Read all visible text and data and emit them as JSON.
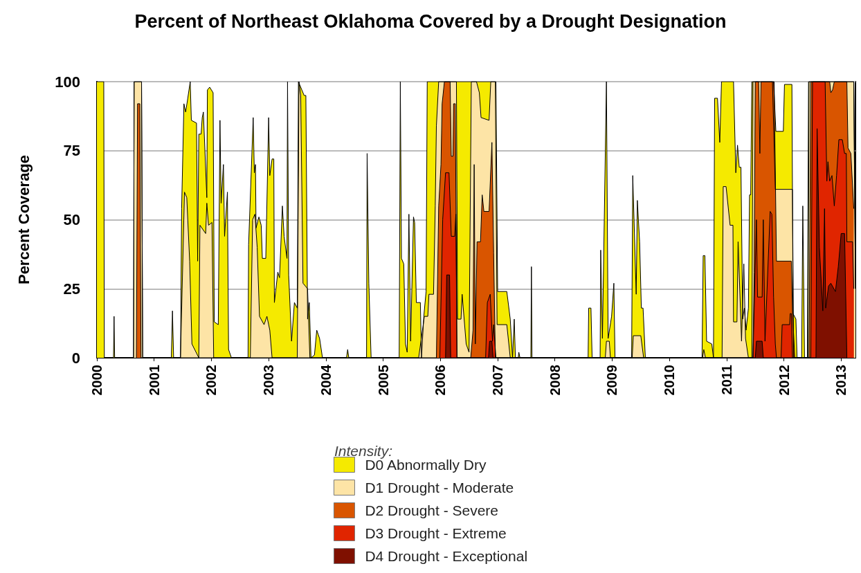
{
  "chart_data": {
    "type": "area",
    "title": "Percent of Northeast Oklahoma Covered by a Drought Designation",
    "ylabel": "Percent Coverage",
    "legend_title": "Intensity:",
    "legend": "bottom",
    "grid": "y",
    "xlim": [
      2000,
      2013.25
    ],
    "xticks": [
      2000,
      2001,
      2002,
      2003,
      2004,
      2005,
      2006,
      2007,
      2008,
      2009,
      2010,
      2011,
      2012,
      2013
    ],
    "ylim": [
      0,
      100
    ],
    "yticks": [
      0,
      25,
      50,
      75,
      100
    ],
    "series": [
      {
        "name": "D0 Abnormally Dry",
        "color": "#f5ea00",
        "x": [
          2000.0,
          2000.12,
          2000.13,
          2000.29,
          2000.3,
          2000.31,
          2000.64,
          2000.65,
          2000.78,
          2000.8,
          2001.3,
          2001.32,
          2001.34,
          2001.46,
          2001.48,
          2001.52,
          2001.55,
          2001.58,
          2001.63,
          2001.65,
          2001.74,
          2001.76,
          2001.78,
          2001.82,
          2001.84,
          2001.86,
          2001.92,
          2001.93,
          2001.97,
          2002.03,
          2002.05,
          2002.12,
          2002.15,
          2002.17,
          2002.21,
          2002.23,
          2002.28,
          2002.3,
          2002.35,
          2002.64,
          2002.65,
          2002.73,
          2002.75,
          2002.77,
          2002.78,
          2002.83,
          2002.87,
          2002.89,
          2002.95,
          2003.0,
          2003.02,
          2003.06,
          2003.09,
          2003.1,
          2003.16,
          2003.19,
          2003.24,
          2003.27,
          2003.32,
          2003.33,
          2003.35,
          2003.4,
          2003.45,
          2003.5,
          2003.52,
          2003.62,
          2003.65,
          2003.68,
          2003.71,
          2003.74,
          2003.8,
          2003.84,
          2003.89,
          2003.94,
          2004.36,
          2004.38,
          2004.4,
          2004.71,
          2004.72,
          2004.75,
          2004.79,
          2005.28,
          2005.3,
          2005.32,
          2005.36,
          2005.39,
          2005.42,
          2005.45,
          2005.48,
          2005.53,
          2005.55,
          2005.58,
          2005.65,
          2005.67,
          2005.71,
          2005.75,
          2005.77,
          2006.97,
          2007.0,
          2007.16,
          2007.22,
          2007.26,
          2007.29,
          2007.31,
          2007.36,
          2007.37,
          2007.39,
          2007.58,
          2007.59,
          2007.6,
          2008.58,
          2008.59,
          2008.63,
          2008.65,
          2008.79,
          2008.8,
          2008.83,
          2008.9,
          2008.93,
          2008.99,
          2009.03,
          2009.05,
          2009.34,
          2009.36,
          2009.42,
          2009.44,
          2009.48,
          2009.51,
          2009.54,
          2009.58,
          2010.57,
          2010.59,
          2010.62,
          2010.65,
          2010.74,
          2010.77,
          2010.79,
          2010.84,
          2010.88,
          2010.91,
          2011.12,
          2011.16,
          2011.19,
          2011.22,
          2011.25,
          2011.28,
          2011.31,
          2011.34,
          2011.38,
          2011.4,
          2011.42,
          2011.44,
          2011.82,
          2011.86,
          2011.99,
          2012.01,
          2012.14,
          2012.16,
          2012.21,
          2012.23,
          2012.31,
          2012.33,
          2012.36,
          2012.41,
          2012.43,
          2013.22,
          2013.25
        ],
        "values": [
          100,
          100,
          0,
          0,
          15,
          0,
          0,
          100,
          100,
          0,
          0,
          17,
          0,
          0,
          54,
          92,
          89,
          93,
          100,
          86,
          85,
          35,
          81,
          81,
          87,
          89,
          58,
          97,
          98,
          96,
          13,
          12,
          86,
          56,
          70,
          44,
          60,
          3,
          0,
          0,
          41,
          87,
          67,
          70,
          47,
          51,
          48,
          36,
          36,
          87,
          66,
          72,
          72,
          20,
          31,
          29,
          55,
          44,
          36,
          100,
          30,
          6,
          20,
          18,
          100,
          95,
          95,
          14,
          20,
          0,
          1,
          10,
          7,
          0,
          0,
          3,
          0,
          0,
          74,
          27,
          0,
          0,
          100,
          36,
          34,
          5,
          2,
          52,
          6,
          51,
          49,
          20,
          20,
          0,
          15,
          24,
          100,
          100,
          24,
          24,
          14,
          0,
          14,
          0,
          0,
          2,
          0,
          0,
          33,
          0,
          0,
          18,
          18,
          0,
          0,
          39,
          7,
          100,
          7,
          15,
          27,
          0,
          0,
          66,
          23,
          57,
          42,
          18,
          18,
          0,
          0,
          37,
          37,
          6,
          5,
          0,
          94,
          94,
          78,
          100,
          100,
          67,
          77,
          69,
          69,
          14,
          18,
          10,
          18,
          59,
          59,
          100,
          100,
          82,
          82,
          99,
          99,
          16,
          14,
          0,
          0,
          55,
          0,
          0,
          100,
          100,
          25
        ]
      },
      {
        "name": "D1 Drought - Moderate",
        "color": "#fde4a6",
        "x": [
          2000.64,
          2000.65,
          2000.78,
          2000.8,
          2001.46,
          2001.53,
          2001.57,
          2001.62,
          2001.66,
          2001.78,
          2001.8,
          2001.9,
          2001.92,
          2001.95,
          2002.01,
          2002.04,
          2002.68,
          2002.72,
          2002.76,
          2002.8,
          2002.84,
          2002.92,
          2002.97,
          2003.02,
          2003.06,
          2003.5,
          2003.53,
          2003.56,
          2003.6,
          2003.68,
          2003.72,
          2005.62,
          2005.72,
          2005.78,
          2005.8,
          2005.88,
          2005.91,
          2005.93,
          2005.97,
          2006.28,
          2006.3,
          2006.36,
          2006.38,
          2006.45,
          2006.5,
          2006.54,
          2006.63,
          2006.68,
          2006.71,
          2006.85,
          2006.88,
          2006.96,
          2006.99,
          2007.16,
          2007.22,
          2008.88,
          2008.9,
          2008.95,
          2008.97,
          2009.35,
          2009.37,
          2009.5,
          2009.55,
          2010.58,
          2010.6,
          2010.63,
          2010.92,
          2010.94,
          2010.99,
          2011.06,
          2011.11,
          2011.12,
          2011.18,
          2011.2,
          2011.24,
          2011.26,
          2011.3,
          2011.33,
          2011.38,
          2011.44,
          2011.46,
          2011.8,
          2011.85,
          2012.15,
          2012.17,
          2012.42,
          2012.44,
          2013.22,
          2013.25
        ],
        "values": [
          0,
          100,
          100,
          0,
          0,
          60,
          58,
          35,
          5,
          0,
          48,
          45,
          56,
          48,
          49,
          0,
          0,
          50,
          52,
          40,
          15,
          12,
          15,
          10,
          0,
          0,
          100,
          95,
          27,
          25,
          0,
          0,
          15,
          15,
          23,
          23,
          55,
          84,
          100,
          100,
          14,
          14,
          23,
          5,
          2,
          100,
          100,
          96,
          87,
          86,
          100,
          100,
          12,
          12,
          0,
          0,
          6,
          6,
          0,
          0,
          8,
          8,
          0,
          0,
          3,
          0,
          0,
          62,
          62,
          48,
          48,
          13,
          13,
          42,
          18,
          6,
          34,
          7,
          0,
          0,
          100,
          100,
          61,
          61,
          0,
          0,
          100,
          100,
          25
        ]
      },
      {
        "name": "D2 Drought - Severe",
        "color": "#d95500",
        "x": [
          2000.69,
          2000.71,
          2000.75,
          2000.77,
          2005.93,
          2005.97,
          2006.01,
          2006.03,
          2006.07,
          2006.17,
          2006.19,
          2006.22,
          2006.23,
          2006.26,
          2006.29,
          2006.53,
          2006.57,
          2006.59,
          2006.61,
          2006.64,
          2006.7,
          2006.73,
          2006.76,
          2006.85,
          2006.9,
          2006.93,
          2006.96,
          2011.46,
          2011.48,
          2011.5,
          2011.56,
          2011.58,
          2011.6,
          2011.83,
          2011.87,
          2012.13,
          2012.15,
          2012.19,
          2012.44,
          2012.47,
          2012.8,
          2012.82,
          2012.85,
          2012.88,
          2013.1,
          2013.12,
          2013.17,
          2013.22
        ],
        "values": [
          0,
          92,
          92,
          0,
          0,
          55,
          70,
          92,
          100,
          100,
          73,
          73,
          92,
          92,
          0,
          0,
          10,
          70,
          5,
          42,
          42,
          59,
          53,
          53,
          78,
          38,
          0,
          0,
          31,
          100,
          100,
          74,
          100,
          100,
          35,
          35,
          17,
          0,
          0,
          100,
          100,
          96,
          97,
          100,
          100,
          76,
          74,
          54
        ]
      },
      {
        "name": "D3 Drought - Extreme",
        "color": "#e02500",
        "x": [
          2005.99,
          2006.04,
          2006.09,
          2006.15,
          2006.19,
          2006.25,
          2006.27,
          2006.29,
          2006.79,
          2006.82,
          2006.87,
          2006.91,
          2006.93,
          2006.97,
          2011.46,
          2011.52,
          2011.54,
          2011.62,
          2011.64,
          2011.67,
          2011.76,
          2011.79,
          2011.82,
          2011.85,
          2011.87,
          2011.95,
          2011.97,
          2012.1,
          2012.11,
          2012.13,
          2012.15,
          2012.47,
          2012.5,
          2012.72,
          2012.75,
          2012.77,
          2012.8,
          2012.84,
          2012.88,
          2012.92,
          2012.96,
          2013.02,
          2013.06,
          2013.09,
          2013.1,
          2013.2,
          2013.22
        ],
        "values": [
          0,
          50,
          67,
          67,
          44,
          44,
          52,
          0,
          0,
          20,
          23,
          6,
          12,
          0,
          0,
          50,
          22,
          22,
          50,
          6,
          53,
          52,
          22,
          5,
          0,
          0,
          12,
          12,
          16,
          16,
          0,
          0,
          100,
          100,
          64,
          71,
          64,
          66,
          55,
          66,
          79,
          79,
          74,
          74,
          42,
          42,
          25
        ]
      },
      {
        "name": "D4 Drought - Exceptional",
        "color": "#7f1000",
        "x": [
          2006.09,
          2006.11,
          2006.16,
          2006.18,
          2006.84,
          2006.86,
          2006.9,
          2006.92,
          2011.5,
          2011.52,
          2011.62,
          2011.64,
          2012.56,
          2012.58,
          2012.62,
          2012.68,
          2012.71,
          2012.73,
          2012.78,
          2012.82,
          2012.9,
          2012.95,
          2013.0,
          2013.06,
          2013.1
        ],
        "values": [
          0,
          30,
          30,
          0,
          0,
          6,
          6,
          0,
          0,
          6,
          6,
          0,
          0,
          83,
          40,
          17,
          54,
          18,
          26,
          27,
          24,
          33,
          45,
          45,
          0
        ]
      }
    ]
  }
}
